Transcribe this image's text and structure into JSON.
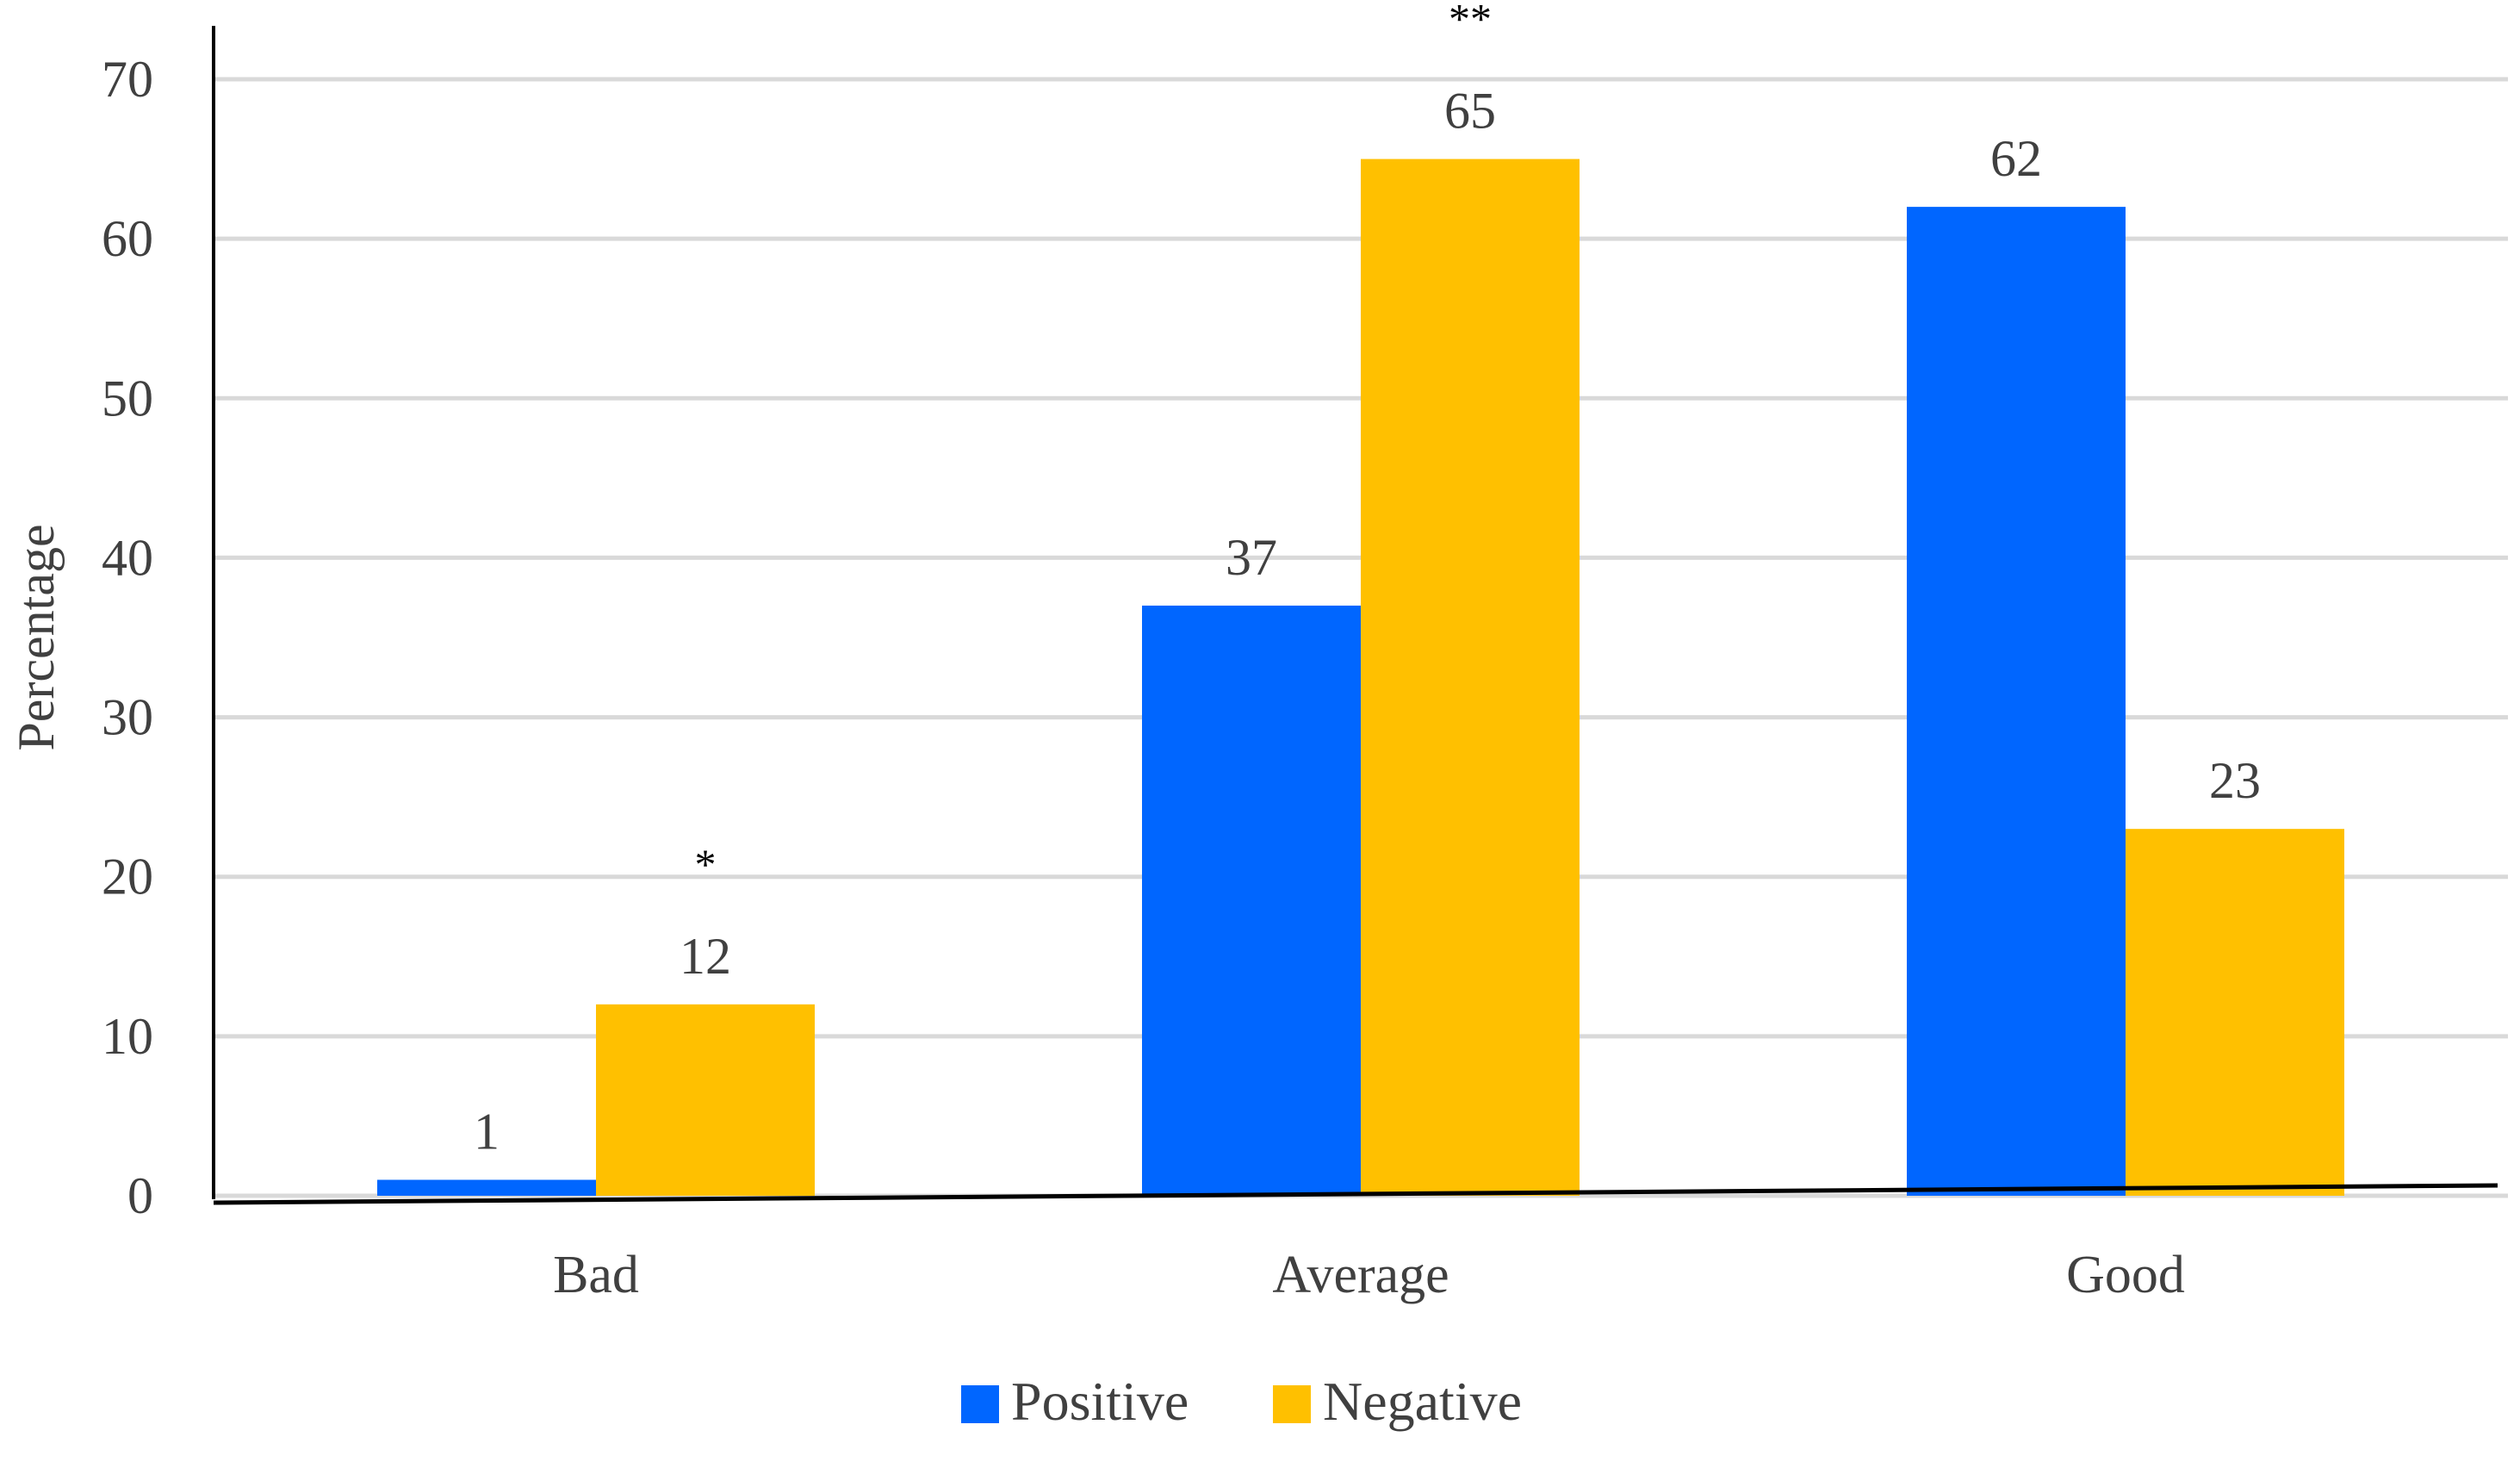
{
  "chart_data": {
    "type": "bar",
    "title": "",
    "xlabel": "",
    "ylabel": "Percentage",
    "ylim": [
      0,
      70
    ],
    "yticks": [
      0,
      10,
      20,
      30,
      40,
      50,
      60,
      70
    ],
    "categories": [
      "Bad",
      "Average",
      "Good"
    ],
    "series": [
      {
        "name": "Positive",
        "color": "#0066FF",
        "values": [
          1,
          37,
          62
        ]
      },
      {
        "name": "Negative",
        "color": "#FFC000",
        "values": [
          12,
          65,
          23
        ]
      }
    ],
    "annotations": [
      {
        "category": "Bad",
        "series": "Negative",
        "text": "*"
      },
      {
        "category": "Average",
        "series": "Negative",
        "text": "**"
      }
    ],
    "grid": true,
    "legend_position": "bottom",
    "colors": {
      "grid": "#D9D9D9",
      "axis": "#000000",
      "text": "#404040"
    }
  }
}
